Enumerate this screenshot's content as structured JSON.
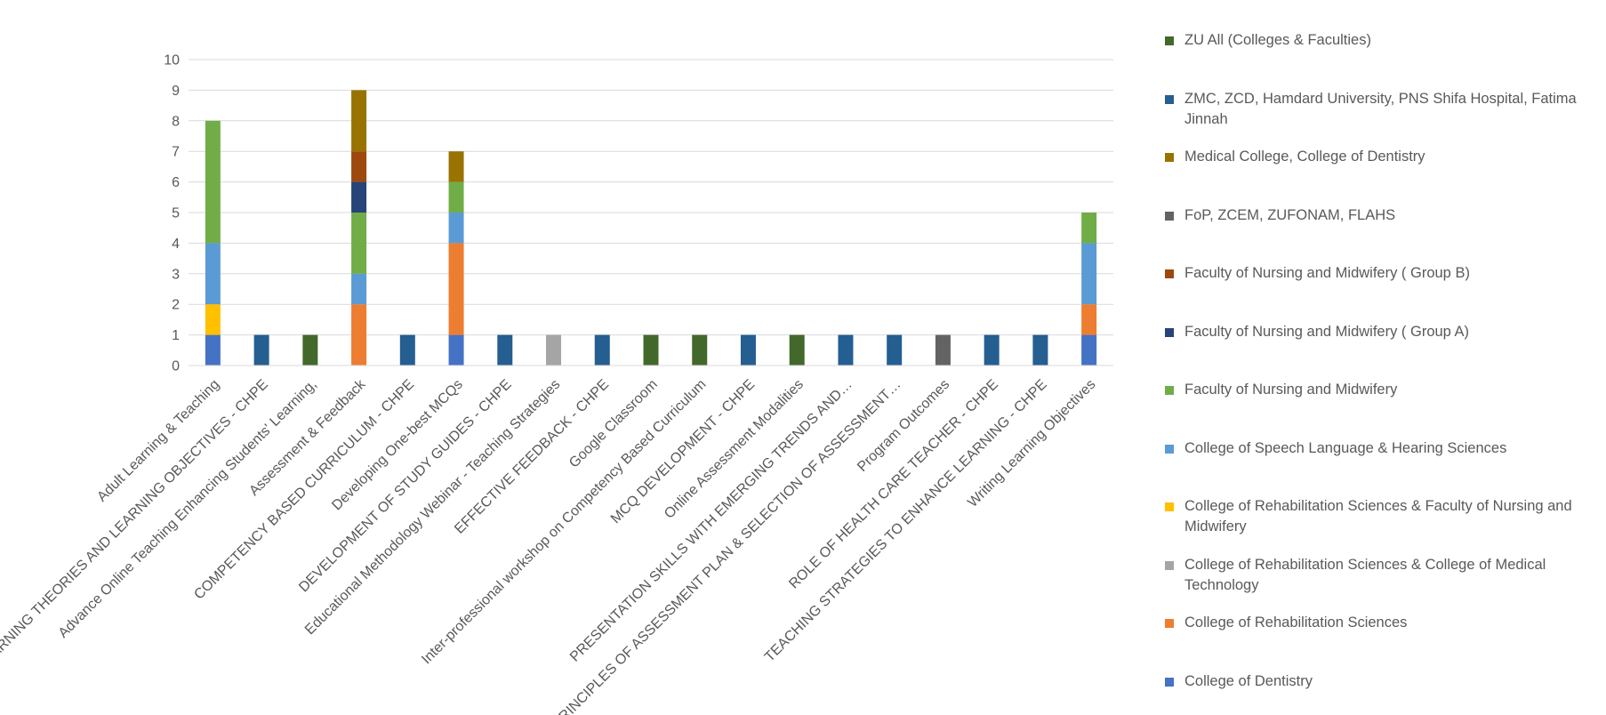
{
  "chart_data": {
    "type": "bar",
    "stacked": true,
    "ylim": [
      0,
      10
    ],
    "yticks": [
      0,
      1,
      2,
      3,
      4,
      5,
      6,
      7,
      8,
      9,
      10
    ],
    "grid": true,
    "legend_position": "right",
    "categories": [
      "Adult Learning & Teaching",
      "LEARNING THEORIES AND LEARNING OBJECTIVES - CHPE",
      "Advance Online Teaching Enhancing Students' Learning,",
      "Assessment & Feedback",
      "COMPETENCY BASED CURRICULUM - CHPE",
      "Developing One-best MCQs",
      "DEVELOPMENT OF STUDY GUIDES - CHPE",
      "Educational Methodology Webinar - Teaching Strategies",
      "EFFECTIVE FEEDBACK - CHPE",
      "Google Classroom",
      "Inter-professional workshop on Competency Based Curriculum",
      "MCQ DEVELOPMENT - CHPE",
      "Online Assessment Modalities",
      "PRESENTATION SKILLS WITH EMERGING TRENDS AND…",
      "PRINCIPLES OF ASSESSMENT PLAN & SELECTION OF ASSESSMENT…",
      "Program Outcomes",
      "ROLE OF HEALTH CARE TEACHER - CHPE",
      "TEACHING STRATEGIES TO ENHANCE LEARNING - CHPE",
      "Writing Learning Objectives"
    ],
    "series": [
      {
        "name": "College of Dentistry",
        "color": "#4472C4",
        "values": [
          1,
          0,
          0,
          0,
          0,
          1,
          0,
          0,
          0,
          0,
          0,
          0,
          0,
          0,
          0,
          0,
          0,
          0,
          1
        ]
      },
      {
        "name": "College of Rehabilitation Sciences",
        "color": "#ED7D31",
        "values": [
          0,
          0,
          0,
          2,
          0,
          3,
          0,
          0,
          0,
          0,
          0,
          0,
          0,
          0,
          0,
          0,
          0,
          0,
          1
        ]
      },
      {
        "name": "College of Rehabilitation Sciences & College of Medical Technology",
        "color": "#A5A5A5",
        "values": [
          0,
          0,
          0,
          0,
          0,
          0,
          0,
          1,
          0,
          0,
          0,
          0,
          0,
          0,
          0,
          0,
          0,
          0,
          0
        ]
      },
      {
        "name": "College of Rehabilitation Sciences & Faculty of Nursing and Midwifery",
        "color": "#FFC000",
        "values": [
          1,
          0,
          0,
          0,
          0,
          0,
          0,
          0,
          0,
          0,
          0,
          0,
          0,
          0,
          0,
          0,
          0,
          0,
          0
        ]
      },
      {
        "name": "College of Speech Language & Hearing Sciences",
        "color": "#5B9BD5",
        "values": [
          2,
          0,
          0,
          1,
          0,
          1,
          0,
          0,
          0,
          0,
          0,
          0,
          0,
          0,
          0,
          0,
          0,
          0,
          2
        ]
      },
      {
        "name": "Faculty of Nursing and Midwifery",
        "color": "#70AD47",
        "values": [
          4,
          0,
          0,
          2,
          0,
          1,
          0,
          0,
          0,
          0,
          0,
          0,
          0,
          0,
          0,
          0,
          0,
          0,
          1
        ]
      },
      {
        "name": "Faculty of Nursing and Midwifery ( Group A)",
        "color": "#264478",
        "values": [
          0,
          0,
          0,
          1,
          0,
          0,
          0,
          0,
          0,
          0,
          0,
          0,
          0,
          0,
          0,
          0,
          0,
          0,
          0
        ]
      },
      {
        "name": "Faculty of Nursing and Midwifery ( Group B)",
        "color": "#9E480E",
        "values": [
          0,
          0,
          0,
          1,
          0,
          0,
          0,
          0,
          0,
          0,
          0,
          0,
          0,
          0,
          0,
          0,
          0,
          0,
          0
        ]
      },
      {
        "name": "FoP, ZCEM, ZUFONAM, FLAHS",
        "color": "#636363",
        "values": [
          0,
          0,
          0,
          0,
          0,
          0,
          0,
          0,
          0,
          0,
          0,
          0,
          0,
          0,
          0,
          1,
          0,
          0,
          0
        ]
      },
      {
        "name": "Medical College, College of Dentistry",
        "color": "#997300",
        "values": [
          0,
          0,
          0,
          2,
          0,
          1,
          0,
          0,
          0,
          0,
          0,
          0,
          0,
          0,
          0,
          0,
          0,
          0,
          0
        ]
      },
      {
        "name": "ZMC, ZCD, Hamdard University, PNS Shifa Hospital, Fatima Jinnah",
        "color": "#255E91",
        "values": [
          0,
          1,
          0,
          0,
          1,
          0,
          1,
          0,
          1,
          0,
          0,
          1,
          0,
          1,
          1,
          0,
          1,
          1,
          0
        ]
      },
      {
        "name": "ZU All (Colleges & Faculties)",
        "color": "#43682B",
        "values": [
          0,
          0,
          1,
          0,
          0,
          0,
          0,
          0,
          0,
          1,
          1,
          0,
          1,
          0,
          0,
          0,
          0,
          0,
          0
        ]
      }
    ]
  }
}
